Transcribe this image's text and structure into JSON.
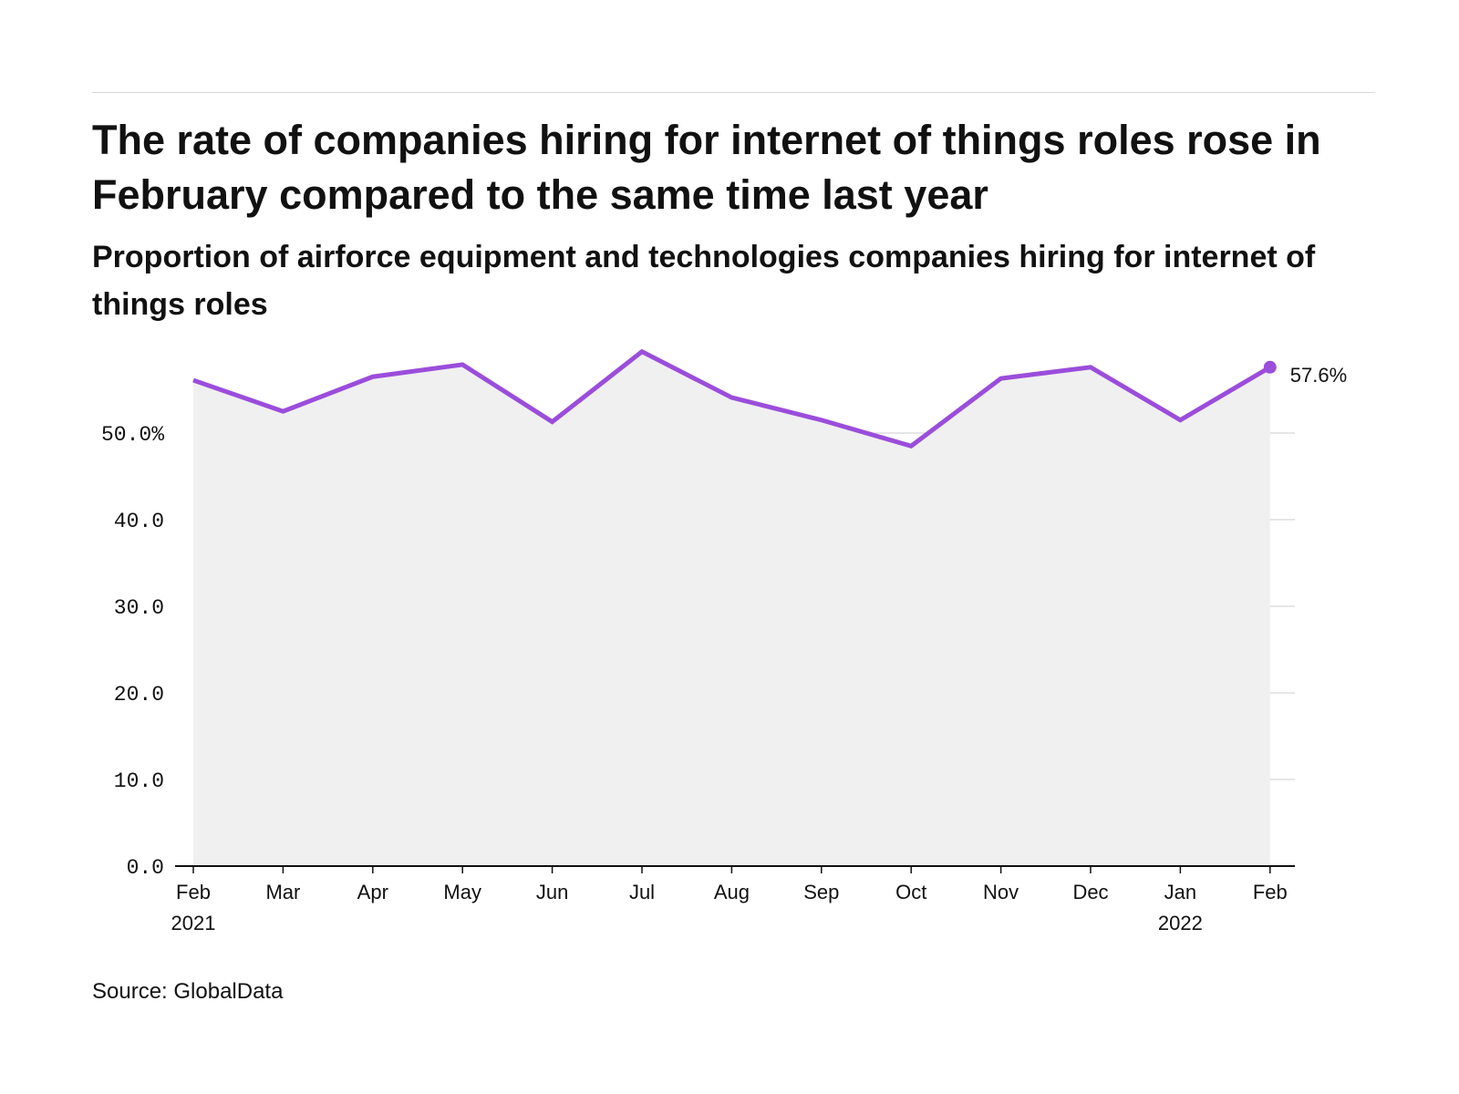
{
  "header": {
    "title": "The rate of companies hiring for internet of things roles rose in February compared to the same time last year",
    "subtitle": "Proportion of airforce equipment and technologies companies hiring for internet of things roles"
  },
  "footer": {
    "source": "Source: GlobalData"
  },
  "colors": {
    "line": "#9b4ddb",
    "area": "#f0f0f0",
    "grid": "#dddddd",
    "axis": "#111111"
  },
  "chart_data": {
    "type": "area",
    "title": "The rate of companies hiring for internet of things roles rose in February compared to the same time last year",
    "subtitle": "Proportion of airforce equipment and technologies companies hiring for internet of things roles",
    "xlabel": "",
    "ylabel": "",
    "ylim": [
      0,
      60
    ],
    "grid": true,
    "legend": "none",
    "y_ticks": [
      {
        "value": 0,
        "label": "0.0"
      },
      {
        "value": 10,
        "label": "10.0"
      },
      {
        "value": 20,
        "label": "20.0"
      },
      {
        "value": 30,
        "label": "30.0"
      },
      {
        "value": 40,
        "label": "40.0"
      },
      {
        "value": 50,
        "label": "50.0%"
      }
    ],
    "categories": [
      "Feb",
      "Mar",
      "Apr",
      "May",
      "Jun",
      "Jul",
      "Aug",
      "Sep",
      "Oct",
      "Nov",
      "Dec",
      "Jan",
      "Feb"
    ],
    "category_years": [
      "2021",
      "",
      "",
      "",
      "",
      "",
      "",
      "",
      "",
      "",
      "",
      "2022",
      ""
    ],
    "x": [
      "2021-02",
      "2021-03",
      "2021-04",
      "2021-05",
      "2021-06",
      "2021-07",
      "2021-08",
      "2021-09",
      "2021-10",
      "2021-11",
      "2021-12",
      "2022-01",
      "2022-02"
    ],
    "series": [
      {
        "values": [
          56.1,
          52.5,
          56.5,
          57.9,
          51.3,
          59.4,
          54.1,
          51.5,
          48.5,
          56.3,
          57.6,
          51.5,
          57.6
        ]
      }
    ],
    "annotations": [
      {
        "index": 12,
        "label": "57.6%"
      }
    ]
  }
}
